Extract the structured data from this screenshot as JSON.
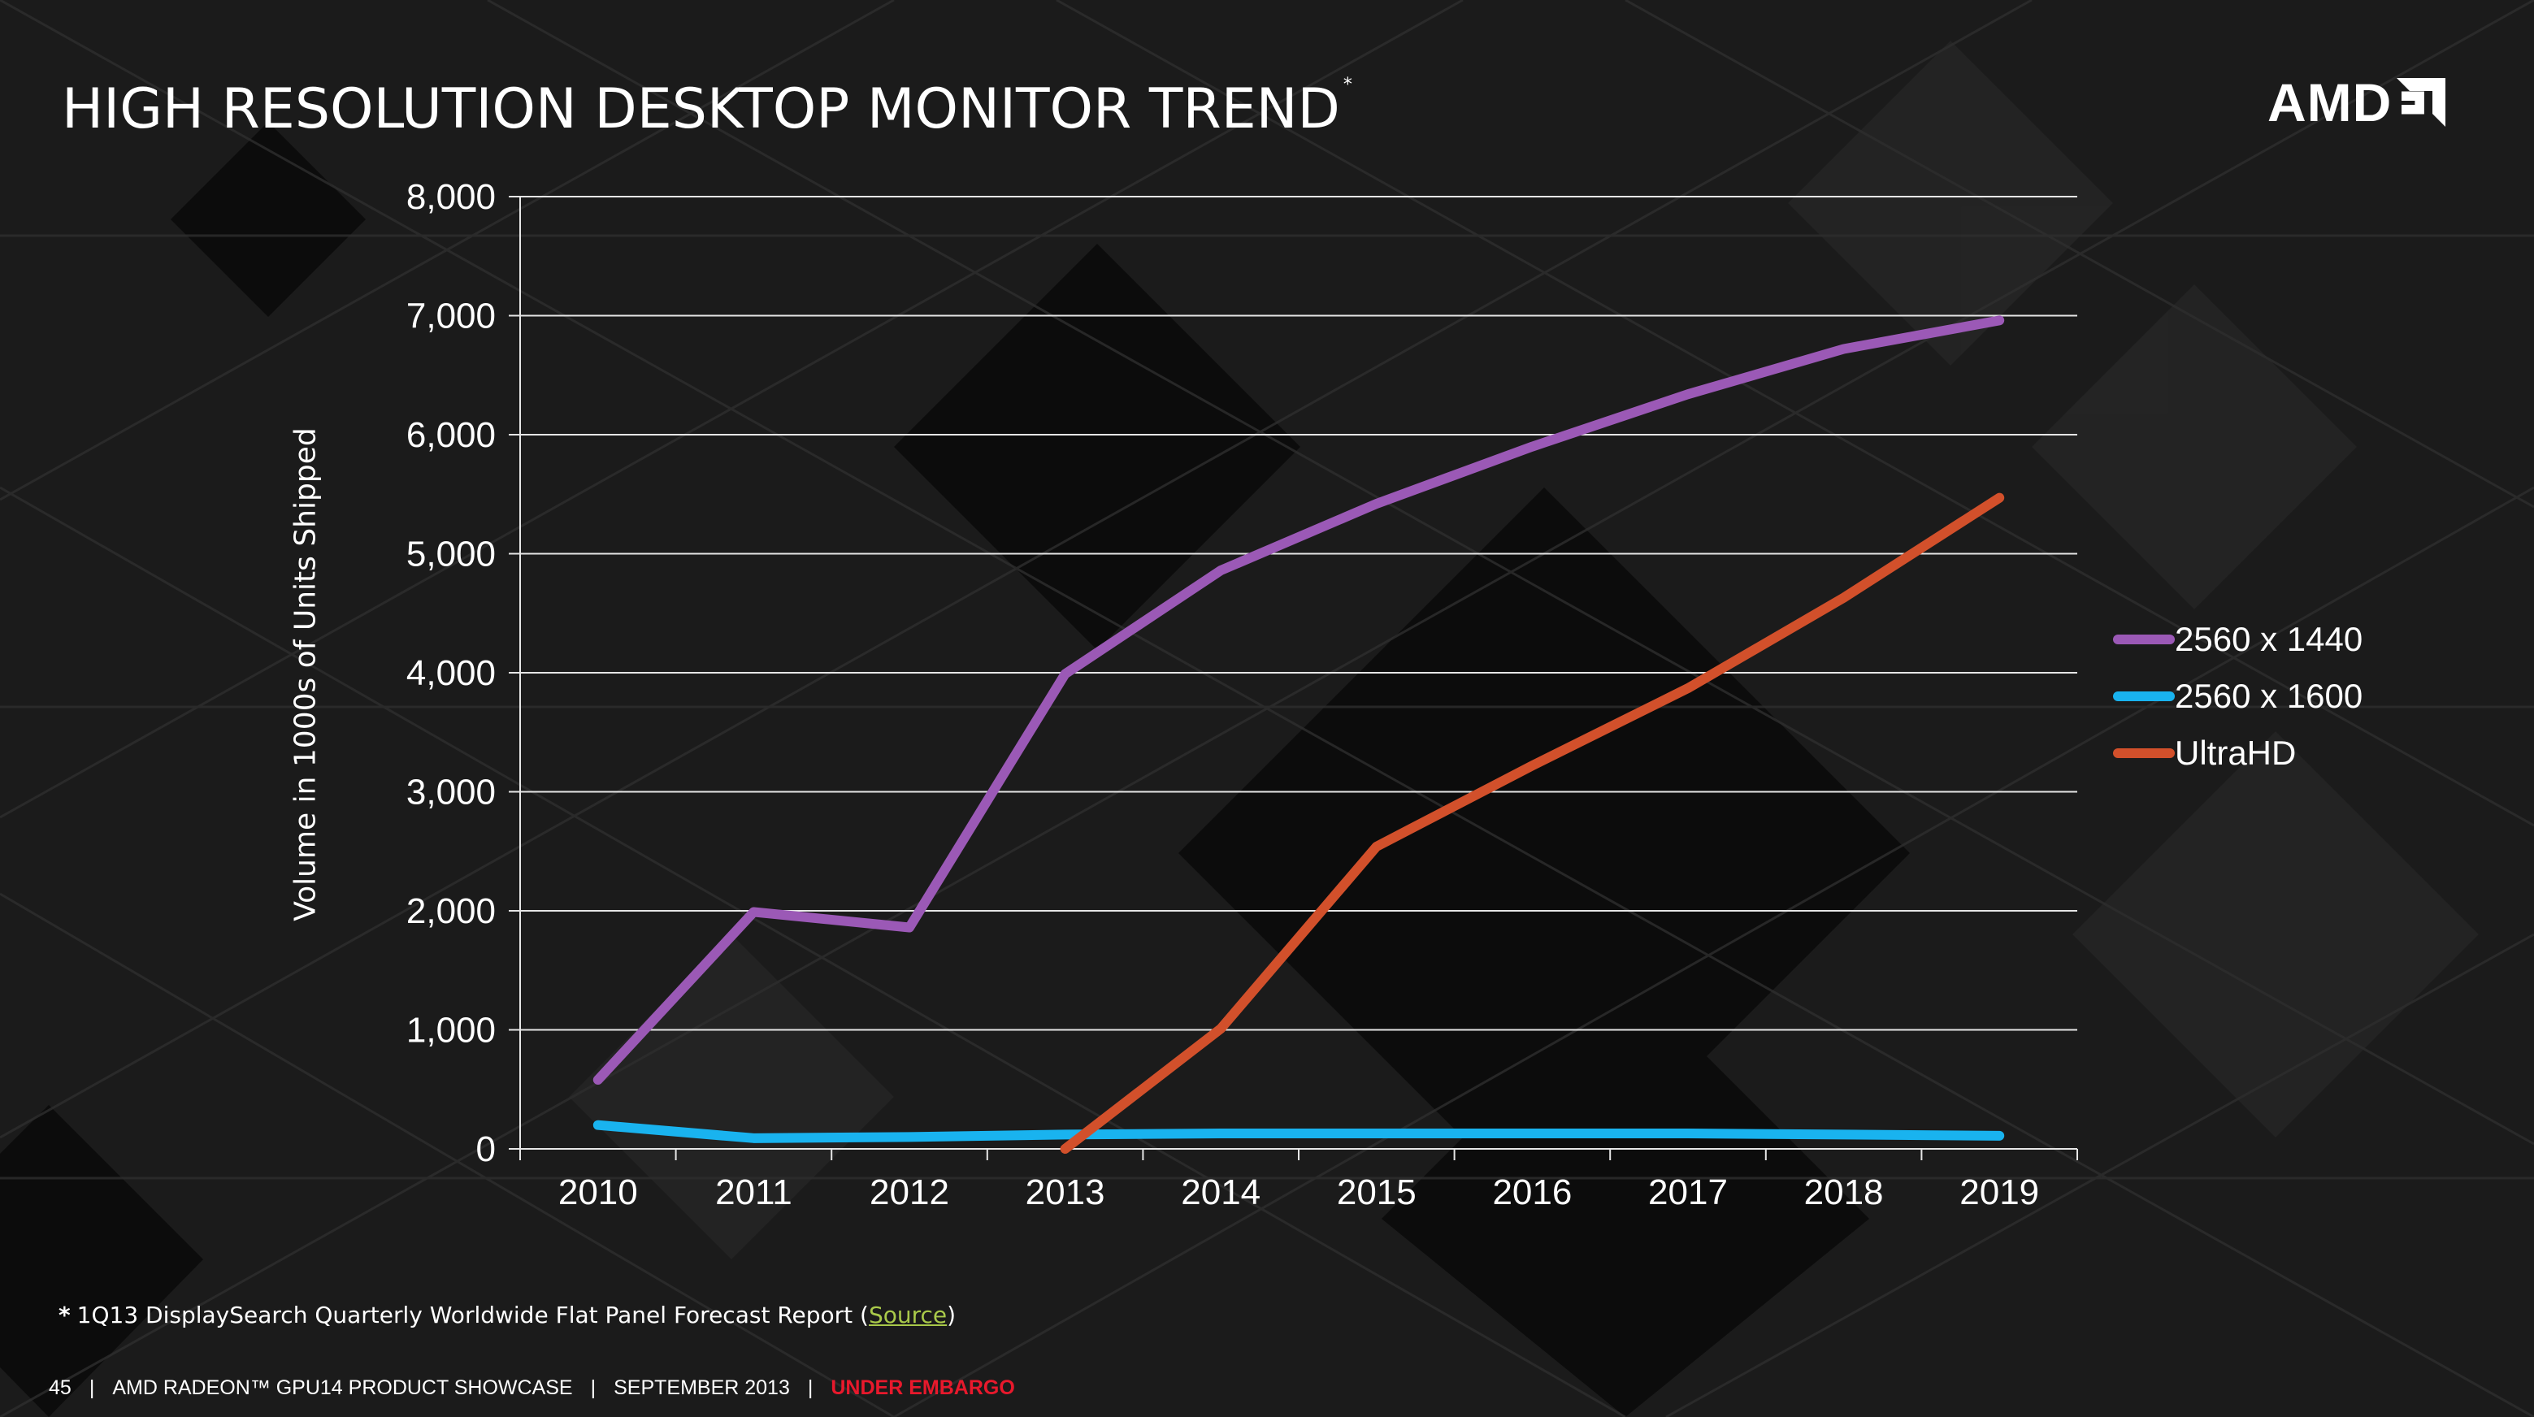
{
  "slide": {
    "title": "HIGH RESOLUTION DESKTOP MONITOR TREND",
    "title_mark": "*",
    "logo_text": "AMD",
    "footnote_star": "*",
    "footnote_text": "1Q13 DisplaySearch Quarterly Worldwide Flat Panel Forecast Report (",
    "footnote_link": "Source",
    "footnote_close": ")",
    "footer": {
      "page": "45",
      "separator": "|",
      "event": "AMD RADEON™ GPU14 PRODUCT SHOWCASE",
      "date": "SEPTEMBER 2013",
      "embargo": "UNDER EMBARGO"
    }
  },
  "colors": {
    "embargo": "#e8192c",
    "link": "#a9c94a"
  },
  "chart_data": {
    "type": "line",
    "title": "HIGH RESOLUTION DESKTOP MONITOR TREND",
    "xlabel": "",
    "ylabel": "Volume in 1000s of Units Shipped",
    "ylim": [
      0,
      8000
    ],
    "yticks": [
      0,
      1000,
      2000,
      3000,
      4000,
      5000,
      6000,
      7000,
      8000
    ],
    "ytick_labels": [
      "0",
      "1,000",
      "2,000",
      "3,000",
      "4,000",
      "5,000",
      "6,000",
      "7,000",
      "8,000"
    ],
    "categories": [
      "2010",
      "2011",
      "2012",
      "2013",
      "2014",
      "2015",
      "2016",
      "2017",
      "2018",
      "2019"
    ],
    "grid": true,
    "legend_position": "right",
    "series": [
      {
        "name": "2560 x 1440",
        "color": "#9b59b6",
        "values": [
          580,
          1990,
          1860,
          3990,
          4860,
          5420,
          5900,
          6340,
          6720,
          6960
        ]
      },
      {
        "name": "2560 x 1600",
        "color": "#19b3ef",
        "values": [
          200,
          90,
          100,
          120,
          130,
          130,
          130,
          130,
          120,
          110
        ]
      },
      {
        "name": "UltraHD",
        "color": "#d2502b",
        "values": [
          null,
          null,
          null,
          0,
          1010,
          2540,
          3220,
          3870,
          4630,
          5470
        ]
      }
    ]
  }
}
